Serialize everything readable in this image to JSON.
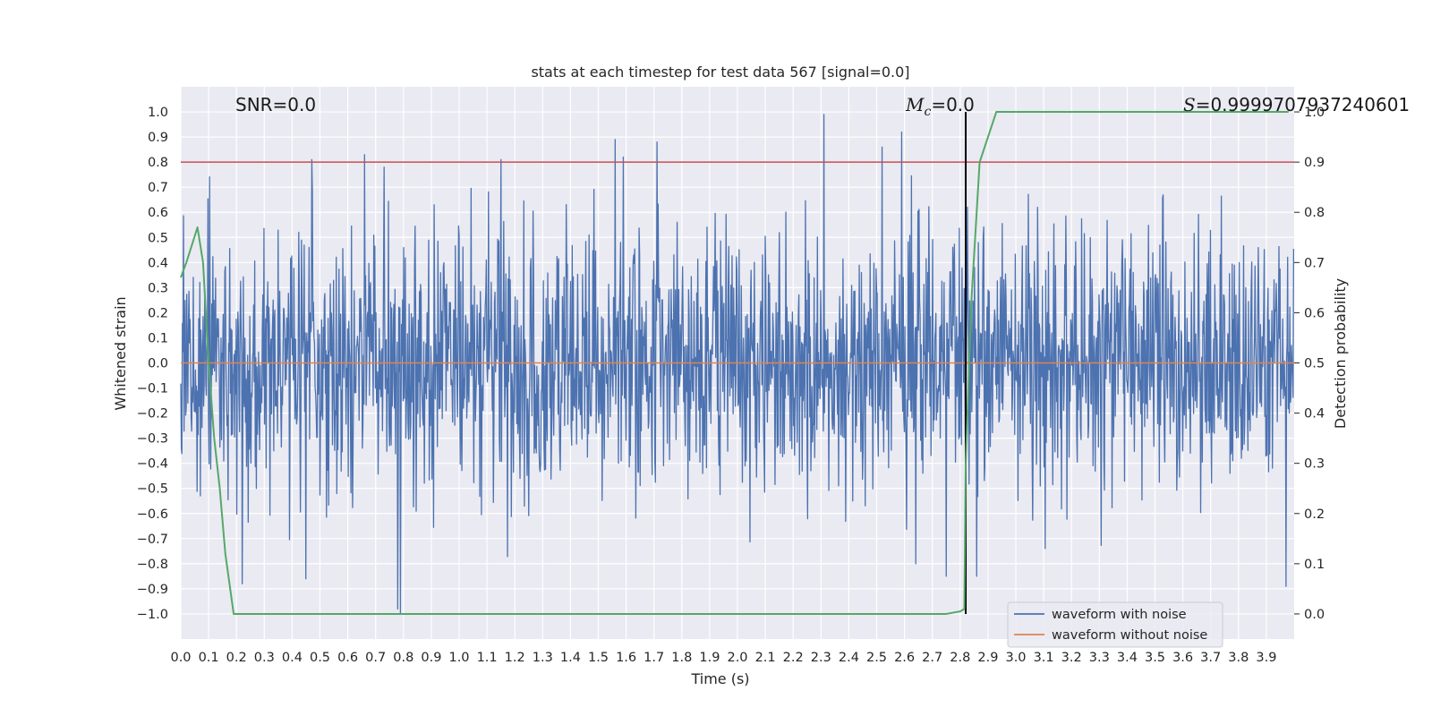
{
  "chart_data": {
    "type": "line",
    "title": "stats at each timestep for test data 567 [signal=0.0]",
    "xlabel": "Time (s)",
    "ylabel": "Whitened strain",
    "ylabel_right": "Detection probability",
    "xlim": [
      0.0,
      4.0
    ],
    "ylim": [
      -1.1,
      1.1
    ],
    "ylim_right": [
      -0.05,
      1.05
    ],
    "grid": true,
    "x_ticks": [
      "0.0",
      "0.1",
      "0.2",
      "0.3",
      "0.4",
      "0.5",
      "0.6",
      "0.7",
      "0.8",
      "0.9",
      "1.0",
      "1.1",
      "1.2",
      "1.3",
      "1.4",
      "1.5",
      "1.6",
      "1.7",
      "1.8",
      "1.9",
      "2.0",
      "2.1",
      "2.2",
      "2.3",
      "2.4",
      "2.5",
      "2.6",
      "2.7",
      "2.8",
      "2.9",
      "3.0",
      "3.1",
      "3.2",
      "3.3",
      "3.4",
      "3.5",
      "3.6",
      "3.7",
      "3.8",
      "3.9"
    ],
    "y_ticks": [
      "1.0",
      "0.9",
      "0.8",
      "0.7",
      "0.6",
      "0.5",
      "0.4",
      "0.3",
      "0.2",
      "0.1",
      "0.0",
      "−0.1",
      "−0.2",
      "−0.3",
      "−0.4",
      "−0.5",
      "−0.6",
      "−0.7",
      "−0.8",
      "−0.9",
      "−1.0"
    ],
    "y_ticks_right": [
      "1.0",
      "0.9",
      "0.8",
      "0.7",
      "0.6",
      "0.5",
      "0.4",
      "0.3",
      "0.2",
      "0.1",
      "0.0"
    ],
    "annotations": {
      "snr": "SNR=0.0",
      "mc_symbol": "M",
      "mc_sub": "c",
      "mc_value": "=0.0",
      "s_symbol": "S",
      "s_value": "=0.9999707937240601"
    },
    "threshold_right": 0.9,
    "peak_time": 2.82,
    "noise": {
      "name": "waveform with noise",
      "color": "#4c72b0",
      "n_samples": 2048,
      "sigma": 0.25,
      "pos_extreme_times": [
        0.47,
        0.66,
        0.73,
        1.15,
        1.56,
        1.59,
        1.71,
        2.31,
        2.52,
        2.59
      ],
      "pos_extreme_values": [
        0.81,
        0.83,
        0.78,
        0.81,
        0.89,
        0.82,
        0.88,
        0.99,
        0.86,
        0.92
      ],
      "neg_extreme_times": [
        0.22,
        0.45,
        0.78,
        0.79,
        2.64,
        2.75,
        2.86,
        3.97
      ],
      "neg_extreme_values": [
        -0.88,
        -0.86,
        -0.98,
        -1.0,
        -0.8,
        -0.85,
        -0.85,
        -0.89
      ]
    },
    "clean": {
      "name": "waveform without noise",
      "color": "#dd8452",
      "value": 0.0
    },
    "probability": {
      "name": "detection probability",
      "color": "#55a868",
      "x": [
        0.0,
        0.02,
        0.06,
        0.08,
        0.1,
        0.12,
        0.14,
        0.16,
        0.19,
        0.25,
        0.5,
        1.0,
        2.0,
        2.5,
        2.75,
        2.8,
        2.815,
        2.82,
        2.84,
        2.87,
        2.93,
        3.0,
        3.5,
        3.98
      ],
      "y": [
        0.67,
        0.7,
        0.77,
        0.7,
        0.5,
        0.35,
        0.25,
        0.12,
        0.0,
        0.0,
        0.0,
        0.0,
        0.0,
        0.0,
        0.0,
        0.005,
        0.01,
        0.3,
        0.62,
        0.9,
        1.0,
        1.0,
        1.0,
        1.0
      ]
    },
    "threshold_color": "#c44e52",
    "peak_color": "#000000"
  }
}
